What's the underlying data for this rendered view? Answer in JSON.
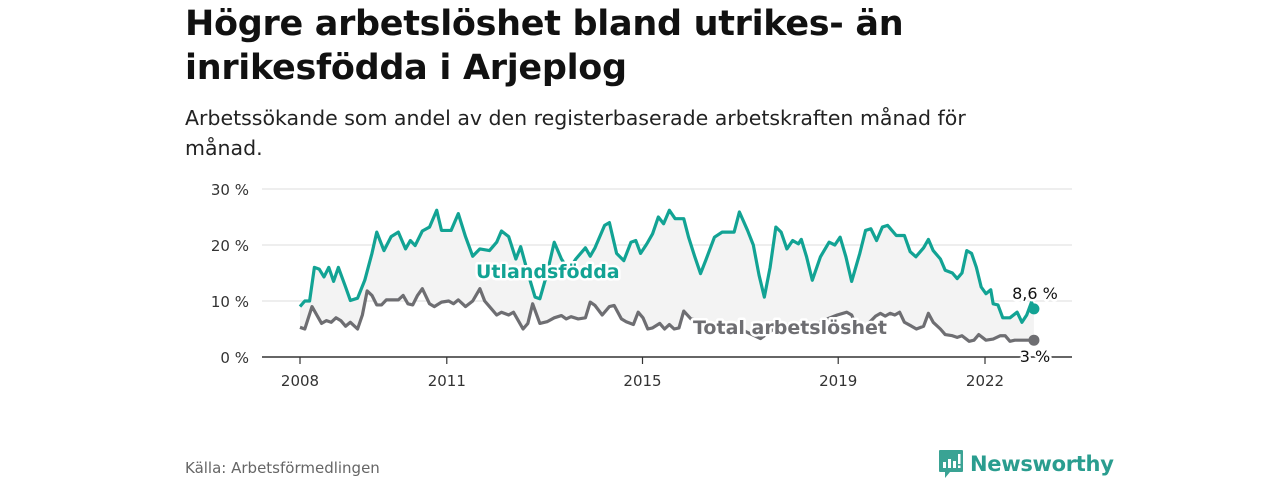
{
  "header": {
    "title": "Högre arbetslöshet bland utrikes- än inrikesfödda i Arjeplog",
    "subtitle": "Arbetssökande som andel av den registerbaserade arbetskraften månad för månad."
  },
  "footer": {
    "source": "Källa: Arbetsförmedlingen",
    "brand": "Newsworthy"
  },
  "colors": {
    "foreign": "#12a394",
    "total": "#6e6e72",
    "band": "#f3f3f3",
    "grid": "#dddddd"
  },
  "chart_data": {
    "type": "line",
    "title": "Högre arbetslöshet bland utrikes- än inrikesfödda i Arjeplog",
    "xlabel": "",
    "ylabel": "",
    "ylim": [
      0,
      30
    ],
    "xlim": [
      2008,
      2023
    ],
    "x_ticks": [
      "2008",
      "2011",
      "2015",
      "2019",
      "2022"
    ],
    "x_tick_values": [
      2008,
      2011,
      2015,
      2019,
      2022
    ],
    "y_ticks": [
      "0 %",
      "10 %",
      "20 %",
      "30 %"
    ],
    "y_tick_values": [
      0,
      10,
      20,
      30
    ],
    "grid": true,
    "series": [
      {
        "name": "Utlandsfödda",
        "end_label": "8,6 %",
        "points": [
          [
            2008.0,
            9
          ],
          [
            2008.1,
            10
          ],
          [
            2008.2,
            10
          ],
          [
            2008.3,
            16
          ],
          [
            2008.4,
            15.7
          ],
          [
            2008.5,
            14.3
          ],
          [
            2008.6,
            16
          ],
          [
            2008.7,
            13.5
          ],
          [
            2008.8,
            16
          ],
          [
            2008.95,
            12.5
          ],
          [
            2009.05,
            10.1
          ],
          [
            2009.2,
            10.5
          ],
          [
            2009.35,
            13.7
          ],
          [
            2009.5,
            18.5
          ],
          [
            2009.6,
            22.3
          ],
          [
            2009.75,
            19
          ],
          [
            2009.9,
            21.5
          ],
          [
            2010.05,
            22.3
          ],
          [
            2010.2,
            19.3
          ],
          [
            2010.3,
            20.8
          ],
          [
            2010.4,
            19.9
          ],
          [
            2010.55,
            22.5
          ],
          [
            2010.7,
            23.2
          ],
          [
            2010.85,
            26.2
          ],
          [
            2010.95,
            22.6
          ],
          [
            2011.15,
            22.6
          ],
          [
            2011.3,
            25.6
          ],
          [
            2011.45,
            21.5
          ],
          [
            2011.6,
            18
          ],
          [
            2011.75,
            19.3
          ],
          [
            2011.95,
            19
          ],
          [
            2012.1,
            20.5
          ],
          [
            2012.2,
            22.5
          ],
          [
            2012.35,
            21.5
          ],
          [
            2012.5,
            17.5
          ],
          [
            2012.6,
            19.7
          ],
          [
            2012.75,
            15
          ],
          [
            2012.9,
            10.7
          ],
          [
            2013.0,
            10.4
          ],
          [
            2013.15,
            14.9
          ],
          [
            2013.3,
            20.5
          ],
          [
            2013.45,
            17.5
          ],
          [
            2013.6,
            15.5
          ],
          [
            2013.75,
            17.5
          ],
          [
            2013.95,
            19.5
          ],
          [
            2014.05,
            18
          ],
          [
            2014.15,
            19.5
          ],
          [
            2014.35,
            23.5
          ],
          [
            2014.45,
            24
          ],
          [
            2014.6,
            18.5
          ],
          [
            2014.75,
            17.2
          ],
          [
            2014.9,
            20.5
          ],
          [
            2015.0,
            20.8
          ],
          [
            2015.1,
            18.5
          ],
          [
            2015.23,
            20.2
          ],
          [
            2015.35,
            22
          ],
          [
            2015.47,
            25
          ],
          [
            2015.58,
            23.8
          ],
          [
            2015.7,
            26.2
          ],
          [
            2015.82,
            24.7
          ],
          [
            2016.0,
            24.7
          ],
          [
            2016.1,
            21.4
          ],
          [
            2016.23,
            17.9
          ],
          [
            2016.35,
            14.9
          ],
          [
            2016.46,
            17.3
          ],
          [
            2016.64,
            21.4
          ],
          [
            2016.8,
            22.3
          ],
          [
            2017.05,
            22.3
          ],
          [
            2017.16,
            25.9
          ],
          [
            2017.33,
            22.6
          ],
          [
            2017.45,
            20
          ],
          [
            2017.57,
            14.6
          ],
          [
            2017.68,
            10.7
          ],
          [
            2017.8,
            16
          ],
          [
            2017.92,
            23.2
          ],
          [
            2018.03,
            22.3
          ],
          [
            2018.15,
            19.3
          ],
          [
            2018.27,
            20.8
          ],
          [
            2018.39,
            20.2
          ],
          [
            2018.45,
            21
          ],
          [
            2018.56,
            17.9
          ],
          [
            2018.68,
            13.7
          ],
          [
            2018.85,
            17.9
          ],
          [
            2019.03,
            20.5
          ],
          [
            2019.15,
            20
          ],
          [
            2019.26,
            21.4
          ],
          [
            2019.38,
            17.9
          ],
          [
            2019.5,
            13.5
          ],
          [
            2019.67,
            18.5
          ],
          [
            2019.79,
            22.6
          ],
          [
            2019.9,
            22.9
          ],
          [
            2020.02,
            20.8
          ],
          [
            2020.14,
            23.2
          ],
          [
            2020.25,
            23.5
          ],
          [
            2020.43,
            21.7
          ],
          [
            2020.6,
            21.7
          ],
          [
            2020.72,
            18.8
          ],
          [
            2020.84,
            17.9
          ],
          [
            2021.0,
            19.5
          ],
          [
            2021.1,
            21
          ],
          [
            2021.2,
            19
          ],
          [
            2021.35,
            17.5
          ],
          [
            2021.45,
            15.5
          ],
          [
            2021.6,
            15
          ],
          [
            2021.7,
            14
          ],
          [
            2021.8,
            15
          ],
          [
            2021.9,
            19
          ],
          [
            2022.0,
            18.5
          ],
          [
            2022.1,
            16
          ],
          [
            2022.2,
            12.5
          ],
          [
            2022.3,
            11.3
          ],
          [
            2022.4,
            12
          ],
          [
            2022.45,
            9.5
          ],
          [
            2022.55,
            9.3
          ],
          [
            2022.65,
            7
          ],
          [
            2022.8,
            7
          ],
          [
            2022.95,
            8
          ],
          [
            2023.05,
            6.2
          ],
          [
            2023.15,
            7.5
          ],
          [
            2023.25,
            9.8
          ],
          [
            2023.3,
            8.6
          ]
        ]
      },
      {
        "name": "Total arbetslöshet",
        "end_label": "3 %",
        "points": [
          [
            2008.0,
            5.3
          ],
          [
            2008.1,
            5
          ],
          [
            2008.25,
            9
          ],
          [
            2008.35,
            7.5
          ],
          [
            2008.45,
            6
          ],
          [
            2008.55,
            6.5
          ],
          [
            2008.65,
            6.2
          ],
          [
            2008.75,
            7
          ],
          [
            2008.85,
            6.5
          ],
          [
            2008.95,
            5.5
          ],
          [
            2009.05,
            6.2
          ],
          [
            2009.2,
            5
          ],
          [
            2009.3,
            7.5
          ],
          [
            2009.4,
            11.8
          ],
          [
            2009.5,
            11
          ],
          [
            2009.6,
            9.3
          ],
          [
            2009.7,
            9.3
          ],
          [
            2009.8,
            10.2
          ],
          [
            2009.95,
            10.2
          ],
          [
            2010.05,
            10.2
          ],
          [
            2010.15,
            11
          ],
          [
            2010.25,
            9.5
          ],
          [
            2010.35,
            9.3
          ],
          [
            2010.45,
            11
          ],
          [
            2010.55,
            12.2
          ],
          [
            2010.7,
            9.5
          ],
          [
            2010.8,
            9
          ],
          [
            2010.95,
            9.8
          ],
          [
            2011.1,
            10
          ],
          [
            2011.2,
            9.5
          ],
          [
            2011.3,
            10.2
          ],
          [
            2011.45,
            9
          ],
          [
            2011.6,
            10
          ],
          [
            2011.75,
            12.2
          ],
          [
            2011.85,
            10
          ],
          [
            2011.95,
            9
          ],
          [
            2012.1,
            7.5
          ],
          [
            2012.2,
            8
          ],
          [
            2012.35,
            7.5
          ],
          [
            2012.45,
            8
          ],
          [
            2012.55,
            6.5
          ],
          [
            2012.65,
            5
          ],
          [
            2012.75,
            6
          ],
          [
            2012.85,
            9.5
          ],
          [
            2013.0,
            6
          ],
          [
            2013.15,
            6.3
          ],
          [
            2013.3,
            7
          ],
          [
            2013.45,
            7.4
          ],
          [
            2013.55,
            6.8
          ],
          [
            2013.65,
            7.2
          ],
          [
            2013.8,
            6.8
          ],
          [
            2013.95,
            7
          ],
          [
            2014.05,
            9.8
          ],
          [
            2014.15,
            9.2
          ],
          [
            2014.3,
            7.5
          ],
          [
            2014.45,
            9
          ],
          [
            2014.55,
            9.2
          ],
          [
            2014.7,
            6.8
          ],
          [
            2014.8,
            6.3
          ],
          [
            2014.95,
            5.8
          ],
          [
            2015.05,
            8
          ],
          [
            2015.15,
            7
          ],
          [
            2015.25,
            5
          ],
          [
            2015.35,
            5.2
          ],
          [
            2015.5,
            6
          ],
          [
            2015.6,
            5
          ],
          [
            2015.7,
            5.8
          ],
          [
            2015.8,
            5
          ],
          [
            2015.9,
            5.2
          ],
          [
            2016.0,
            8.2
          ],
          [
            2016.15,
            6.8
          ],
          [
            2016.3,
            6.5
          ],
          [
            2016.45,
            6.5
          ],
          [
            2016.55,
            5.8
          ],
          [
            2016.65,
            5.2
          ],
          [
            2016.8,
            5
          ],
          [
            2017.0,
            5.5
          ],
          [
            2017.3,
            4.5
          ],
          [
            2017.6,
            3.3
          ],
          [
            2017.8,
            4.5
          ],
          [
            2018.0,
            6
          ],
          [
            2018.3,
            5.5
          ],
          [
            2018.6,
            5
          ],
          [
            2018.9,
            6.5
          ],
          [
            2019.2,
            7.5
          ],
          [
            2019.4,
            8
          ],
          [
            2019.5,
            7.5
          ],
          [
            2019.55,
            6.5
          ],
          [
            2019.6,
            5.5
          ],
          [
            2019.7,
            5
          ],
          [
            2019.85,
            6
          ],
          [
            2020.0,
            7.3
          ],
          [
            2020.1,
            7.8
          ],
          [
            2020.2,
            7.3
          ],
          [
            2020.3,
            7.8
          ],
          [
            2020.4,
            7.5
          ],
          [
            2020.5,
            8
          ],
          [
            2020.6,
            6.2
          ],
          [
            2020.75,
            5.5
          ],
          [
            2020.85,
            5
          ],
          [
            2021.0,
            5.5
          ],
          [
            2021.1,
            7.8
          ],
          [
            2021.2,
            6.2
          ],
          [
            2021.35,
            5
          ],
          [
            2021.45,
            4
          ],
          [
            2021.6,
            3.8
          ],
          [
            2021.7,
            3.5
          ],
          [
            2021.8,
            3.8
          ],
          [
            2021.95,
            2.8
          ],
          [
            2022.05,
            3
          ],
          [
            2022.15,
            4
          ],
          [
            2022.3,
            3
          ],
          [
            2022.45,
            3.2
          ],
          [
            2022.6,
            3.8
          ],
          [
            2022.7,
            3.8
          ],
          [
            2022.8,
            2.8
          ],
          [
            2022.9,
            3
          ],
          [
            2023.3,
            3
          ]
        ]
      }
    ]
  }
}
